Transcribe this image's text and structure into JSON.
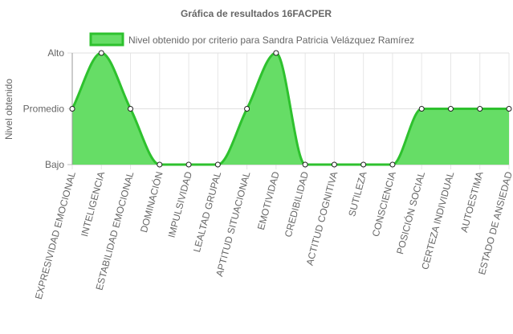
{
  "chart_data": {
    "type": "area",
    "title": "Gráfica de resultados 16FACPER",
    "ylabel": "Nivel obtenido",
    "xlabel": "",
    "y_levels": [
      "Bajo",
      "Promedio",
      "Alto"
    ],
    "ylim": [
      0,
      2
    ],
    "categories": [
      "EXPRESIVIDAD EMOCIONAL",
      "INTELIGENCIA",
      "ESTABILIDAD EMOCIONAL",
      "DOMINACIÓN",
      "IMPULSIVIDAD",
      "LEALTAD GRUPAL",
      "APTITUD SITUACIONAL",
      "EMOTIVIDAD",
      "CREDIBILIDAD",
      "ACTITUD COGNITIVA",
      "SUTILEZA",
      "CONSCIENCIA",
      "POSICIÓN SOCIAL",
      "CERTEZA INDIVIDUAL",
      "AUTOESTIMA",
      "ESTADO DE ANSIEDAD"
    ],
    "series": [
      {
        "name": "Nivel obtenido por criterio para Sandra Patricia Velázquez Ramírez",
        "values": [
          1,
          2,
          1,
          0,
          0,
          0,
          1,
          2,
          0,
          0,
          0,
          0,
          1,
          1,
          1,
          1
        ],
        "color": "#2ec12e",
        "fill": "#66dd66"
      }
    ],
    "grid": true,
    "legend": "top"
  }
}
